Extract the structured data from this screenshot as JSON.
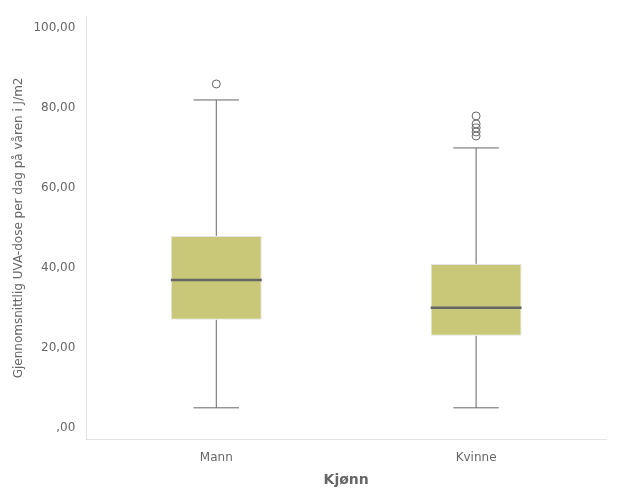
{
  "chart_data": {
    "type": "box",
    "xlabel": "Kjønn",
    "ylabel": "Gjennomsnittlig UVA-dose per dag på våren i J/m2",
    "categories": [
      "Mann",
      "Kvinne"
    ],
    "q1": [
      27,
      23
    ],
    "median": [
      37,
      30
    ],
    "q3": [
      48,
      41
    ],
    "whisker_low": [
      5,
      5
    ],
    "whisker_high": [
      82,
      70
    ],
    "outliers": [
      [
        86
      ],
      [
        73,
        74,
        75,
        76,
        78
      ]
    ],
    "color": "#c8c878",
    "ylim": [
      -3,
      103
    ],
    "yticks": [
      {
        "value": 0,
        "label": ",00"
      },
      {
        "value": 20,
        "label": "20,00"
      },
      {
        "value": 40,
        "label": "40,00"
      },
      {
        "value": 60,
        "label": "60,00"
      },
      {
        "value": 80,
        "label": "80,00"
      },
      {
        "value": 100,
        "label": "100,00"
      }
    ],
    "grid": false
  }
}
